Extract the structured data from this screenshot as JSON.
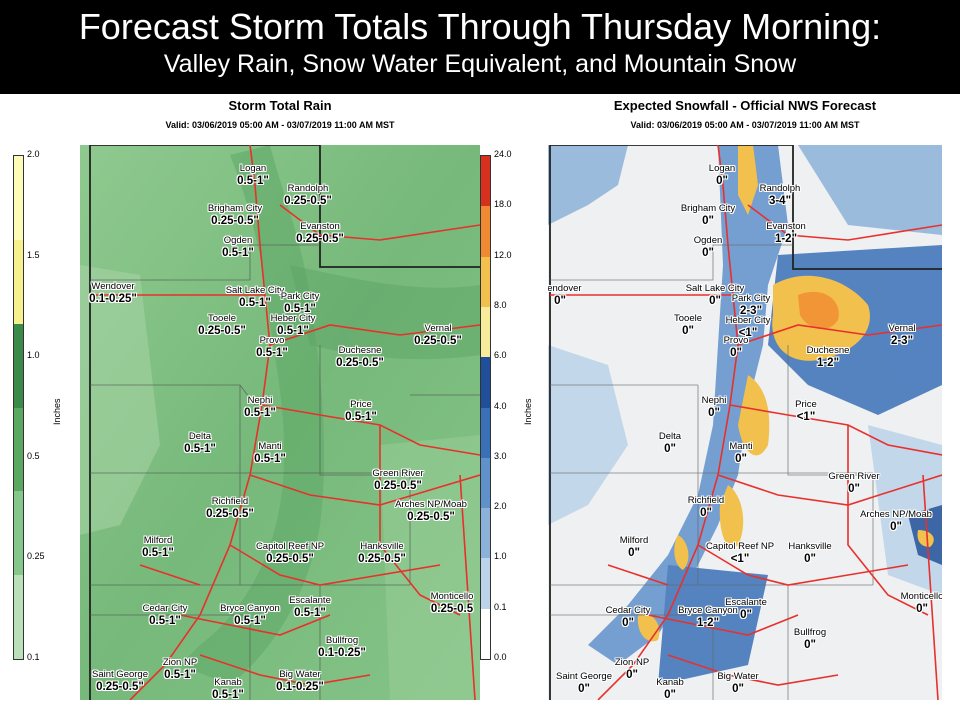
{
  "banner": {
    "title": "Forecast Storm Totals Through Thursday Morning:",
    "subtitle": "Valley Rain, Snow Water Equivalent, and Mountain Snow"
  },
  "left_panel": {
    "title": "Storm Total Rain",
    "valid": "Valid: 03/06/2019 05:00 AM - 03/07/2019 11:00 AM MST",
    "colorbar_label": "Inches",
    "colorbar_ticks": [
      "2.0",
      "1.5",
      "1.0",
      "0.5",
      "0.25",
      "0.1"
    ],
    "colorbar_colors": [
      "#fdfbb8",
      "#f7f08e",
      "#3a8a4a",
      "#5aa862",
      "#85c68a",
      "#b9e0b8"
    ],
    "labels": [
      {
        "name": "Logan",
        "value": "0.5-1\""
      },
      {
        "name": "Randolph",
        "value": "0.25-0.5\""
      },
      {
        "name": "Brigham City",
        "value": "0.25-0.5\""
      },
      {
        "name": "Evanston",
        "value": "0.25-0.5\""
      },
      {
        "name": "Ogden",
        "value": "0.5-1\""
      },
      {
        "name": "Wendover",
        "value": "0.1-0.25\""
      },
      {
        "name": "Salt Lake City",
        "value": "0.5-1\""
      },
      {
        "name": "Park City",
        "value": "0.5-1\""
      },
      {
        "name": "Tooele",
        "value": "0.25-0.5\""
      },
      {
        "name": "Heber City",
        "value": "0.5-1\""
      },
      {
        "name": "Vernal",
        "value": "0.25-0.5\""
      },
      {
        "name": "Provo",
        "value": "0.5-1\""
      },
      {
        "name": "Duchesne",
        "value": "0.25-0.5\""
      },
      {
        "name": "Nephi",
        "value": "0.5-1\""
      },
      {
        "name": "Price",
        "value": "0.5-1\""
      },
      {
        "name": "Delta",
        "value": "0.5-1\""
      },
      {
        "name": "Manti",
        "value": "0.5-1\""
      },
      {
        "name": "Green River",
        "value": "0.25-0.5\""
      },
      {
        "name": "Richfield",
        "value": "0.25-0.5\""
      },
      {
        "name": "Arches NP/Moab",
        "value": "0.25-0.5\""
      },
      {
        "name": "Milford",
        "value": "0.5-1\""
      },
      {
        "name": "Capitol Reef NP",
        "value": "0.25-0.5\""
      },
      {
        "name": "Hanksville",
        "value": "0.25-0.5\""
      },
      {
        "name": "Monticello",
        "value": "0.25-0.5"
      },
      {
        "name": "Cedar City",
        "value": "0.5-1\""
      },
      {
        "name": "Bryce Canyon",
        "value": "0.5-1\""
      },
      {
        "name": "Escalante",
        "value": "0.5-1\""
      },
      {
        "name": "Bullfrog",
        "value": "0.1-0.25\""
      },
      {
        "name": "Zion NP",
        "value": "0.5-1\""
      },
      {
        "name": "Saint George",
        "value": "0.25-0.5\""
      },
      {
        "name": "Kanab",
        "value": "0.5-1\""
      },
      {
        "name": "Big Water",
        "value": "0.1-0.25\""
      }
    ]
  },
  "right_panel": {
    "title": "Expected Snowfall - Official NWS Forecast",
    "valid": "Valid: 03/06/2019 05:00 AM - 03/07/2019 11:00 AM MST",
    "colorbar_label": "Inches",
    "colorbar_ticks": [
      "24.0",
      "18.0",
      "12.0",
      "8.0",
      "6.0",
      "4.0",
      "3.0",
      "2.0",
      "1.0",
      "0.1",
      "0.0"
    ],
    "colorbar_colors": [
      "#d7301f",
      "#f08a32",
      "#f2c04c",
      "#f7ec9c",
      "#1f4f9a",
      "#3a70b8",
      "#5f91cb",
      "#8db2da",
      "#bcd3ea",
      "#ffffff"
    ],
    "labels": [
      {
        "name": "Logan",
        "value": "0\""
      },
      {
        "name": "Randolph",
        "value": "3-4\""
      },
      {
        "name": "Brigham City",
        "value": "0\""
      },
      {
        "name": "Evanston",
        "value": "1-2\""
      },
      {
        "name": "Ogden",
        "value": "0\""
      },
      {
        "name": "Wendover",
        "value": "0\""
      },
      {
        "name": "Salt Lake City",
        "value": "0\""
      },
      {
        "name": "Park City",
        "value": "2-3\""
      },
      {
        "name": "Tooele",
        "value": "0\""
      },
      {
        "name": "Heber City",
        "value": "<1\""
      },
      {
        "name": "Vernal",
        "value": "2-3\""
      },
      {
        "name": "Provo",
        "value": "0\""
      },
      {
        "name": "Duchesne",
        "value": "1-2\""
      },
      {
        "name": "Nephi",
        "value": "0\""
      },
      {
        "name": "Price",
        "value": "<1\""
      },
      {
        "name": "Delta",
        "value": "0\""
      },
      {
        "name": "Manti",
        "value": "0\""
      },
      {
        "name": "Green River",
        "value": "0\""
      },
      {
        "name": "Richfield",
        "value": "0\""
      },
      {
        "name": "Arches NP/Moab",
        "value": "0\""
      },
      {
        "name": "Milford",
        "value": "0\""
      },
      {
        "name": "Capitol Reef NP",
        "value": "<1\""
      },
      {
        "name": "Hanksville",
        "value": "0\""
      },
      {
        "name": "Monticello",
        "value": "0\""
      },
      {
        "name": "Cedar City",
        "value": "0\""
      },
      {
        "name": "Bryce Canyon",
        "value": "1-2\""
      },
      {
        "name": "Escalante",
        "value": "0\""
      },
      {
        "name": "Bullfrog",
        "value": "0\""
      },
      {
        "name": "Zion NP",
        "value": "0\""
      },
      {
        "name": "Saint George",
        "value": "0\""
      },
      {
        "name": "Kanab",
        "value": "0\""
      },
      {
        "name": "Big Water",
        "value": "0\""
      }
    ]
  }
}
